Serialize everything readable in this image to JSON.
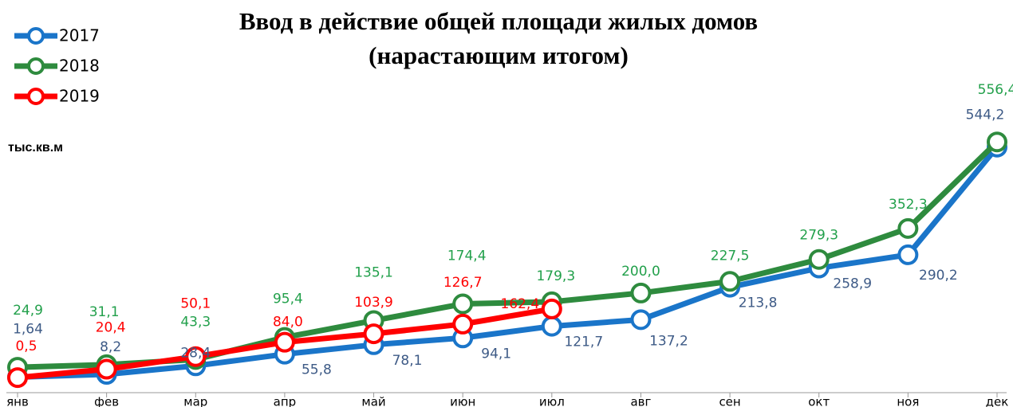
{
  "chart_data": {
    "type": "line",
    "title": [
      "Ввод в действие общей площади жилых домов",
      "(нарастающим итогом)"
    ],
    "y_label": "тыс.кв.м",
    "categories": [
      "янв",
      "фев",
      "мар",
      "апр",
      "май",
      "июн",
      "июл",
      "авг",
      "сен",
      "окт",
      "ноя",
      "дек"
    ],
    "ylim": [
      -35,
      600
    ],
    "legend": "top-left",
    "series": [
      {
        "name": "2017",
        "color": "#1a75c9",
        "label_color": "#3d5a86",
        "values": [
          1.64,
          8.2,
          28.4,
          55.8,
          78.1,
          94.1,
          121.7,
          137.2,
          213.8,
          258.9,
          290.2,
          544.2
        ],
        "value_labels": [
          "1,64",
          "8,2",
          "28,4",
          "55,8",
          "78,1",
          "94,1",
          "121,7",
          "137,2",
          "213,8",
          "258,9",
          "290,2",
          "544,2"
        ]
      },
      {
        "name": "2018",
        "color": "#2e8b3e",
        "label_color": "#22a04b",
        "values": [
          24.9,
          31.1,
          43.3,
          95.4,
          135.1,
          174.4,
          179.3,
          200.0,
          227.5,
          279.3,
          352.3,
          556.4
        ],
        "value_labels": [
          "24,9",
          "31,1",
          "43,3",
          "95,4",
          "135,1",
          "174,4",
          "179,3",
          "200,0",
          "227,5",
          "279,3",
          "352,3",
          "556,4"
        ]
      },
      {
        "name": "2019",
        "color": "#ff0000",
        "label_color": "#ff0000",
        "values": [
          0.5,
          20.4,
          50.1,
          84.0,
          103.9,
          126.7,
          162.4,
          null,
          null,
          null,
          null,
          null
        ],
        "value_labels": [
          "0,5",
          "20,4",
          "50,1",
          "84,0",
          "103,9",
          "126,7",
          "162,4",
          null,
          null,
          null,
          null,
          null
        ]
      }
    ]
  }
}
